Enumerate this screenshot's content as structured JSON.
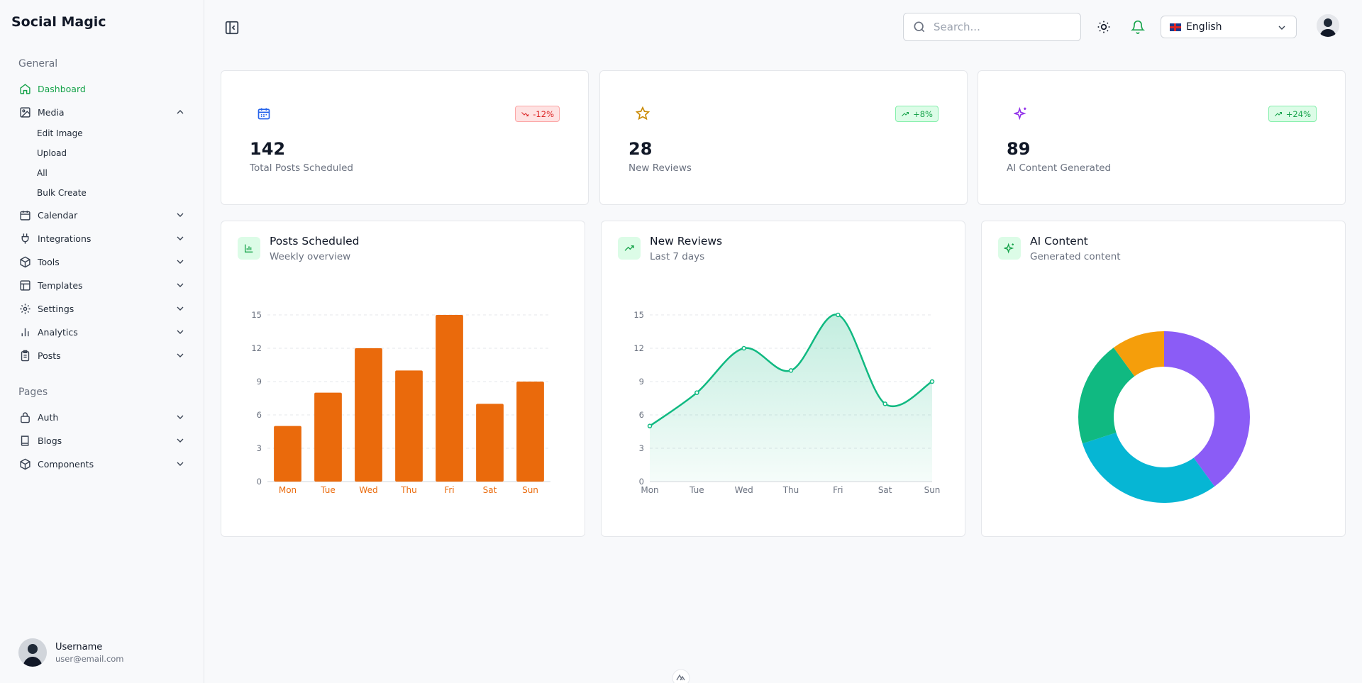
{
  "app": {
    "title": "Social Magic"
  },
  "sidebar": {
    "general_label": "General",
    "pages_label": "Pages",
    "items": [
      {
        "label": "Dashboard",
        "icon": "home-icon"
      },
      {
        "label": "Media",
        "icon": "image-icon"
      },
      {
        "label": "Calendar",
        "icon": "calendar-icon"
      },
      {
        "label": "Integrations",
        "icon": "plug-icon"
      },
      {
        "label": "Tools",
        "icon": "box-icon"
      },
      {
        "label": "Templates",
        "icon": "layout-icon"
      },
      {
        "label": "Settings",
        "icon": "gear-icon"
      },
      {
        "label": "Analytics",
        "icon": "bar-chart-icon"
      },
      {
        "label": "Posts",
        "icon": "clipboard-icon"
      }
    ],
    "media_sub": [
      "Edit Image",
      "Upload",
      "All",
      "Bulk Create"
    ],
    "pages": [
      {
        "label": "Auth",
        "icon": "lock-icon"
      },
      {
        "label": "Blogs",
        "icon": "book-icon"
      },
      {
        "label": "Components",
        "icon": "box-icon"
      }
    ],
    "user": {
      "name": "Username",
      "email": "user@email.com"
    }
  },
  "header": {
    "search_placeholder": "Search...",
    "language": "English",
    "colors": {
      "accent": "#16a34a"
    }
  },
  "stats": [
    {
      "value": "142",
      "label": "Total Posts Scheduled",
      "badge": "-12%",
      "trend": "down",
      "icon": "calendar-icon",
      "icon_color": "#2563eb"
    },
    {
      "value": "28",
      "label": "New Reviews",
      "badge": "+8%",
      "trend": "up",
      "icon": "star-icon",
      "icon_color": "#ca8a04"
    },
    {
      "value": "89",
      "label": "AI Content Generated",
      "badge": "+24%",
      "trend": "up",
      "icon": "sparkles-icon",
      "icon_color": "#9333ea"
    }
  ],
  "charts": {
    "posts": {
      "title": "Posts Scheduled",
      "subtitle": "Weekly overview"
    },
    "reviews": {
      "title": "New Reviews",
      "subtitle": "Last 7 days"
    },
    "ai": {
      "title": "AI Content",
      "subtitle": "Generated content"
    }
  },
  "chart_data": [
    {
      "type": "bar",
      "categories": [
        "Mon",
        "Tue",
        "Wed",
        "Thu",
        "Fri",
        "Sat",
        "Sun"
      ],
      "values": [
        5,
        8,
        12,
        10,
        15,
        7,
        9
      ],
      "ylim": [
        0,
        15
      ],
      "yticks": [
        0,
        3,
        6,
        9,
        12,
        15
      ],
      "color": "#ea6a0c",
      "grid": true
    },
    {
      "type": "area",
      "categories": [
        "Mon",
        "Tue",
        "Wed",
        "Thu",
        "Fri",
        "Sat",
        "Sun"
      ],
      "values": [
        5,
        8,
        12,
        10,
        15,
        7,
        9
      ],
      "ylim": [
        0,
        15
      ],
      "yticks": [
        0,
        3,
        6,
        9,
        12,
        15
      ],
      "color": "#10b981",
      "grid": true
    },
    {
      "type": "pie",
      "donut": true,
      "values": [
        40,
        30,
        20,
        10
      ],
      "colors": [
        "#8b5cf6",
        "#06b6d4",
        "#10b981",
        "#f59e0b"
      ]
    }
  ]
}
